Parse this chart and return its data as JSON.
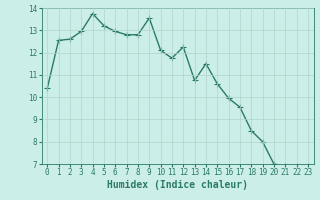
{
  "x": [
    0,
    1,
    2,
    3,
    4,
    5,
    6,
    7,
    8,
    9,
    10,
    11,
    12,
    13,
    14,
    15,
    16,
    17,
    18,
    19,
    20,
    21,
    22,
    23
  ],
  "y": [
    10.4,
    12.55,
    12.6,
    12.95,
    13.75,
    13.2,
    12.95,
    12.8,
    12.8,
    13.55,
    12.1,
    11.75,
    12.25,
    10.75,
    11.5,
    10.6,
    9.95,
    9.55,
    8.5,
    8.0,
    7.0,
    6.9,
    6.9,
    6.9
  ],
  "line_color": "#2a7a6a",
  "marker": "+",
  "markersize": 4,
  "linewidth": 1.0,
  "xlabel": "Humidex (Indice chaleur)",
  "xlabel_fontsize": 7,
  "background_color": "#cceee8",
  "grid_color": "#b0d4cc",
  "tick_color": "#2a7a6a",
  "ylim": [
    7,
    14
  ],
  "xlim": [
    -0.5,
    23.5
  ],
  "yticks": [
    7,
    8,
    9,
    10,
    11,
    12,
    13,
    14
  ],
  "xticks": [
    0,
    1,
    2,
    3,
    4,
    5,
    6,
    7,
    8,
    9,
    10,
    11,
    12,
    13,
    14,
    15,
    16,
    17,
    18,
    19,
    20,
    21,
    22,
    23
  ],
  "tick_fontsize": 5.5
}
